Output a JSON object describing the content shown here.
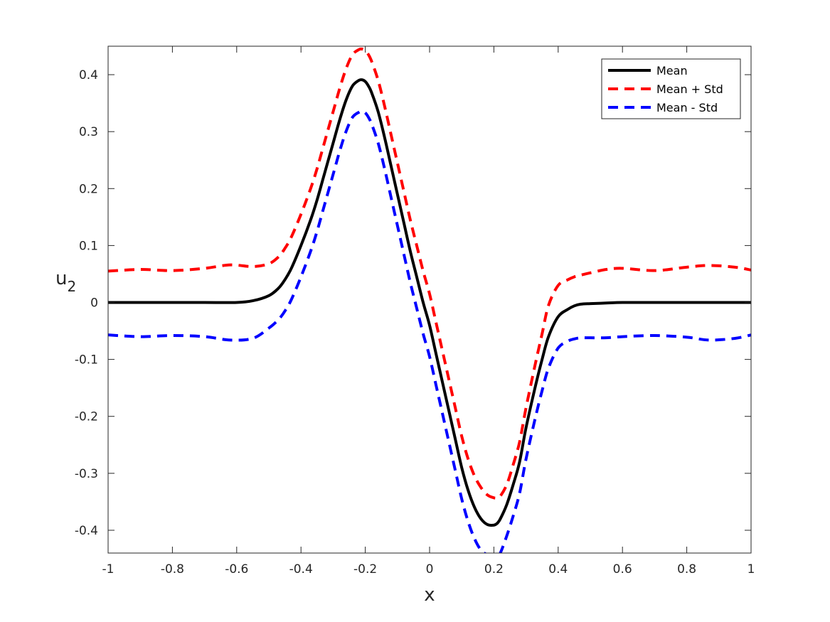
{
  "chart_data": {
    "type": "line",
    "xlabel": "x",
    "ylabel": {
      "main": "u",
      "sub": "2"
    },
    "xlim": [
      -1,
      1
    ],
    "ylim": [
      -0.44,
      0.45
    ],
    "xticks": [
      -1,
      -0.8,
      -0.6,
      -0.4,
      -0.2,
      0,
      0.2,
      0.4,
      0.6,
      0.8,
      1
    ],
    "xtick_labels": [
      "-1",
      "-0.8",
      "-0.6",
      "-0.4",
      "-0.2",
      "0",
      "0.2",
      "0.4",
      "0.6",
      "0.8",
      "1"
    ],
    "yticks": [
      -0.4,
      -0.3,
      -0.2,
      -0.1,
      0,
      0.1,
      0.2,
      0.3,
      0.4
    ],
    "ytick_labels": [
      "-0.4",
      "-0.3",
      "-0.2",
      "-0.1",
      "0",
      "0.1",
      "0.2",
      "0.3",
      "0.4"
    ],
    "grid": false,
    "legend_position": "top-right",
    "series": [
      {
        "name": "Mean",
        "color": "#000000",
        "style": "solid",
        "x": [
          -1,
          -0.9,
          -0.8,
          -0.7,
          -0.6,
          -0.55,
          -0.5,
          -0.47,
          -0.45,
          -0.43,
          -0.4,
          -0.37,
          -0.35,
          -0.33,
          -0.3,
          -0.28,
          -0.26,
          -0.24,
          -0.22,
          -0.21,
          -0.2,
          -0.19,
          -0.18,
          -0.16,
          -0.14,
          -0.12,
          -0.1,
          -0.08,
          -0.06,
          -0.04,
          -0.02,
          0,
          0.02,
          0.04,
          0.06,
          0.08,
          0.1,
          0.12,
          0.14,
          0.16,
          0.18,
          0.2,
          0.21,
          0.22,
          0.24,
          0.26,
          0.28,
          0.3,
          0.33,
          0.35,
          0.37,
          0.4,
          0.43,
          0.45,
          0.47,
          0.5,
          0.55,
          0.6,
          0.7,
          0.8,
          0.9,
          1
        ],
        "y": [
          0,
          0,
          0,
          0,
          0,
          0.003,
          0.012,
          0.025,
          0.04,
          0.06,
          0.1,
          0.145,
          0.18,
          0.22,
          0.28,
          0.32,
          0.355,
          0.38,
          0.39,
          0.391,
          0.388,
          0.38,
          0.368,
          0.335,
          0.29,
          0.24,
          0.19,
          0.14,
          0.09,
          0.045,
          0,
          -0.04,
          -0.09,
          -0.14,
          -0.19,
          -0.24,
          -0.29,
          -0.33,
          -0.36,
          -0.38,
          -0.39,
          -0.391,
          -0.388,
          -0.38,
          -0.355,
          -0.32,
          -0.28,
          -0.22,
          -0.145,
          -0.1,
          -0.06,
          -0.025,
          -0.012,
          -0.006,
          -0.003,
          -0.002,
          -0.001,
          0,
          0,
          0,
          0,
          0
        ]
      },
      {
        "name": "Mean + Std",
        "color": "#ff0000",
        "style": "dashed",
        "x": [
          -1,
          -0.9,
          -0.8,
          -0.7,
          -0.62,
          -0.55,
          -0.5,
          -0.47,
          -0.45,
          -0.43,
          -0.4,
          -0.37,
          -0.35,
          -0.33,
          -0.3,
          -0.28,
          -0.26,
          -0.24,
          -0.22,
          -0.21,
          -0.2,
          -0.19,
          -0.18,
          -0.16,
          -0.14,
          -0.12,
          -0.1,
          -0.08,
          -0.06,
          -0.04,
          -0.02,
          0,
          0.02,
          0.04,
          0.06,
          0.08,
          0.1,
          0.12,
          0.14,
          0.16,
          0.18,
          0.2,
          0.21,
          0.22,
          0.24,
          0.26,
          0.28,
          0.3,
          0.33,
          0.35,
          0.37,
          0.4,
          0.43,
          0.45,
          0.47,
          0.5,
          0.55,
          0.6,
          0.7,
          0.8,
          0.87,
          0.95,
          1
        ],
        "y": [
          0.055,
          0.058,
          0.056,
          0.06,
          0.066,
          0.063,
          0.068,
          0.08,
          0.095,
          0.115,
          0.155,
          0.2,
          0.235,
          0.275,
          0.335,
          0.375,
          0.41,
          0.435,
          0.444,
          0.445,
          0.442,
          0.435,
          0.423,
          0.39,
          0.345,
          0.295,
          0.245,
          0.195,
          0.145,
          0.1,
          0.055,
          0.015,
          -0.035,
          -0.085,
          -0.135,
          -0.185,
          -0.235,
          -0.275,
          -0.305,
          -0.325,
          -0.338,
          -0.343,
          -0.343,
          -0.34,
          -0.32,
          -0.285,
          -0.245,
          -0.185,
          -0.105,
          -0.055,
          -0.005,
          0.03,
          0.04,
          0.045,
          0.048,
          0.052,
          0.058,
          0.06,
          0.056,
          0.062,
          0.065,
          0.062,
          0.057
        ]
      },
      {
        "name": "Mean - Std",
        "color": "#0000ff",
        "style": "dashed",
        "x": [
          -1,
          -0.9,
          -0.8,
          -0.7,
          -0.62,
          -0.55,
          -0.5,
          -0.47,
          -0.45,
          -0.43,
          -0.4,
          -0.37,
          -0.35,
          -0.33,
          -0.3,
          -0.28,
          -0.26,
          -0.24,
          -0.22,
          -0.21,
          -0.2,
          -0.19,
          -0.18,
          -0.16,
          -0.14,
          -0.12,
          -0.1,
          -0.08,
          -0.06,
          -0.04,
          -0.02,
          0,
          0.02,
          0.04,
          0.06,
          0.08,
          0.1,
          0.12,
          0.14,
          0.16,
          0.18,
          0.2,
          0.21,
          0.22,
          0.24,
          0.26,
          0.28,
          0.3,
          0.33,
          0.35,
          0.37,
          0.4,
          0.43,
          0.45,
          0.47,
          0.5,
          0.55,
          0.6,
          0.7,
          0.8,
          0.87,
          0.95,
          1
        ],
        "y": [
          -0.057,
          -0.06,
          -0.058,
          -0.06,
          -0.066,
          -0.063,
          -0.045,
          -0.03,
          -0.015,
          0.005,
          0.045,
          0.09,
          0.125,
          0.165,
          0.225,
          0.265,
          0.3,
          0.325,
          0.334,
          0.336,
          0.333,
          0.325,
          0.313,
          0.28,
          0.235,
          0.185,
          0.135,
          0.085,
          0.035,
          -0.01,
          -0.055,
          -0.095,
          -0.145,
          -0.195,
          -0.245,
          -0.295,
          -0.345,
          -0.385,
          -0.415,
          -0.435,
          -0.443,
          -0.446,
          -0.445,
          -0.44,
          -0.41,
          -0.375,
          -0.335,
          -0.275,
          -0.2,
          -0.155,
          -0.115,
          -0.08,
          -0.068,
          -0.064,
          -0.062,
          -0.062,
          -0.062,
          -0.06,
          -0.058,
          -0.061,
          -0.066,
          -0.063,
          -0.057
        ]
      }
    ]
  }
}
